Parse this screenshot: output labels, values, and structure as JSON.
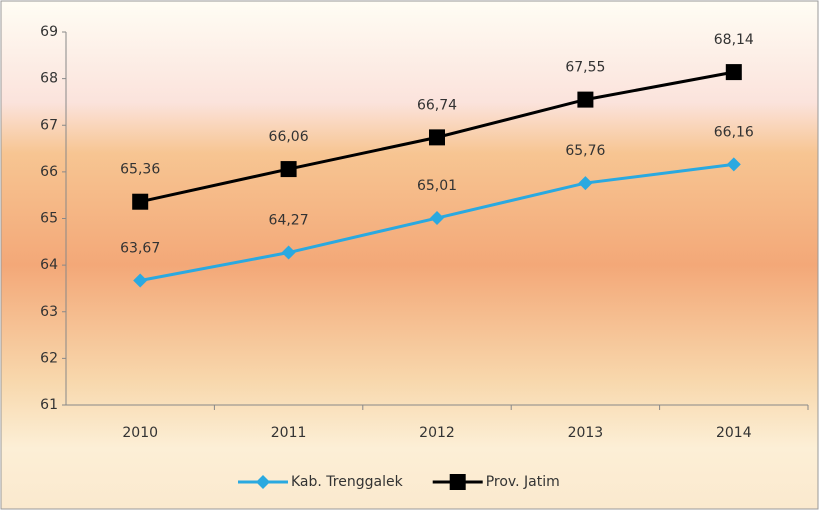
{
  "chart_data": {
    "type": "line",
    "categories": [
      "2010",
      "2011",
      "2012",
      "2013",
      "2014"
    ],
    "series": [
      {
        "name": "Kab. Trenggalek",
        "color": "#2aa9e0",
        "marker": "diamond",
        "values": [
          63.67,
          64.27,
          65.01,
          65.76,
          66.16
        ],
        "value_labels": [
          "63,67",
          "64,27",
          "65,01",
          "65,76",
          "66,16"
        ]
      },
      {
        "name": "Prov. Jatim",
        "color": "#000000",
        "marker": "square",
        "values": [
          65.36,
          66.06,
          66.74,
          67.55,
          68.14
        ],
        "value_labels": [
          "65,36",
          "66,06",
          "66,74",
          "67,55",
          "68,14"
        ]
      }
    ],
    "ylim": [
      61,
      69
    ],
    "yticks": [
      61,
      62,
      63,
      64,
      65,
      66,
      67,
      68,
      69
    ],
    "grid": false,
    "legend": "bottom"
  }
}
